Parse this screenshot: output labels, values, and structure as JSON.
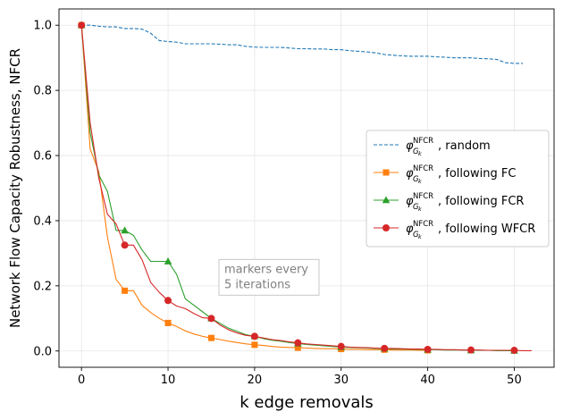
{
  "chart_data": {
    "type": "line",
    "title": "",
    "xlabel": "k edge removals",
    "ylabel": "Network Flow Capacity Robustness, NFCR",
    "xlim": [
      -2.6,
      54.6
    ],
    "ylim": [
      -0.05,
      1.05
    ],
    "xticks": [
      0,
      10,
      20,
      30,
      40,
      50
    ],
    "yticks": [
      0.0,
      0.2,
      0.4,
      0.6,
      0.8,
      1.0
    ],
    "grid": true,
    "legend_position": "center-right",
    "annotation": {
      "lines": [
        "markers every",
        "5 iterations"
      ],
      "x": 16.5,
      "y": 0.27
    },
    "series": [
      {
        "name": "random",
        "legend_prefix": "φ",
        "legend_sup": "NFCR",
        "legend_sub": "G",
        "legend_subsub": "k",
        "color": "#1f77b4",
        "dashed": true,
        "marker": "none",
        "x": [
          0,
          1,
          2,
          3,
          4,
          5,
          6,
          7,
          8,
          9,
          10,
          11,
          12,
          13,
          14,
          15,
          16,
          17,
          18,
          19,
          20,
          21,
          22,
          23,
          24,
          25,
          26,
          27,
          28,
          29,
          30,
          31,
          32,
          33,
          34,
          35,
          36,
          37,
          38,
          39,
          40,
          41,
          42,
          43,
          44,
          45,
          46,
          47,
          48,
          49,
          50,
          51
        ],
        "y": [
          1.0,
          1.0,
          0.997,
          0.995,
          0.995,
          0.99,
          0.99,
          0.988,
          0.975,
          0.953,
          0.95,
          0.948,
          0.943,
          0.943,
          0.943,
          0.943,
          0.942,
          0.94,
          0.94,
          0.935,
          0.933,
          0.932,
          0.932,
          0.932,
          0.93,
          0.928,
          0.928,
          0.927,
          0.927,
          0.925,
          0.925,
          0.922,
          0.92,
          0.918,
          0.915,
          0.91,
          0.908,
          0.906,
          0.905,
          0.905,
          0.905,
          0.903,
          0.902,
          0.9,
          0.9,
          0.9,
          0.898,
          0.897,
          0.895,
          0.885,
          0.883,
          0.883
        ]
      },
      {
        "name": "following FC",
        "legend_prefix": "φ",
        "legend_sup": "NFCR",
        "legend_sub": "G",
        "legend_subsub": "k",
        "color": "#ff7f0e",
        "dashed": false,
        "marker": "square",
        "x": [
          0,
          1,
          2,
          3,
          4,
          5,
          6,
          7,
          8,
          9,
          10,
          11,
          12,
          13,
          14,
          15,
          16,
          17,
          18,
          19,
          20,
          21,
          22,
          23,
          24,
          25,
          26,
          27,
          28,
          29,
          30,
          31,
          32,
          33,
          34,
          35,
          36,
          37,
          38,
          39,
          40
        ],
        "y": [
          1.0,
          0.62,
          0.55,
          0.35,
          0.22,
          0.185,
          0.185,
          0.14,
          0.118,
          0.1,
          0.086,
          0.075,
          0.062,
          0.052,
          0.045,
          0.04,
          0.035,
          0.03,
          0.026,
          0.022,
          0.019,
          0.017,
          0.014,
          0.012,
          0.011,
          0.01,
          0.009,
          0.008,
          0.007,
          0.007,
          0.006,
          0.005,
          0.005,
          0.004,
          0.004,
          0.004,
          0.003,
          0.003,
          0.003,
          0.002,
          0.002
        ]
      },
      {
        "name": "following FCR",
        "legend_prefix": "φ",
        "legend_sup": "NFCR",
        "legend_sub": "G",
        "legend_subsub": "k",
        "color": "#2ca02c",
        "dashed": false,
        "marker": "triangle",
        "x": [
          0,
          1,
          2,
          3,
          4,
          5,
          6,
          7,
          8,
          9,
          10,
          11,
          12,
          13,
          14,
          15,
          16,
          17,
          18,
          19,
          20,
          21,
          22,
          23,
          24,
          25,
          26,
          27,
          28,
          29,
          30,
          31,
          32,
          33,
          34,
          35,
          36,
          37,
          38,
          39,
          40,
          41,
          42,
          43,
          44,
          45,
          46,
          47,
          48,
          49,
          50
        ],
        "y": [
          1.0,
          0.67,
          0.54,
          0.49,
          0.37,
          0.37,
          0.355,
          0.31,
          0.275,
          0.275,
          0.275,
          0.235,
          0.16,
          0.14,
          0.12,
          0.1,
          0.085,
          0.07,
          0.06,
          0.05,
          0.045,
          0.038,
          0.033,
          0.03,
          0.026,
          0.023,
          0.02,
          0.018,
          0.016,
          0.014,
          0.012,
          0.011,
          0.01,
          0.009,
          0.008,
          0.007,
          0.006,
          0.006,
          0.005,
          0.005,
          0.004,
          0.004,
          0.003,
          0.003,
          0.003,
          0.002,
          0.002,
          0.002,
          0.001,
          0.001,
          0.001
        ]
      },
      {
        "name": "following WFCR",
        "legend_prefix": "φ",
        "legend_sup": "NFCR",
        "legend_sub": "G",
        "legend_subsub": "k",
        "color": "#d62728",
        "dashed": false,
        "marker": "circle",
        "x": [
          0,
          1,
          2,
          3,
          4,
          5,
          6,
          7,
          8,
          9,
          10,
          11,
          12,
          13,
          14,
          15,
          16,
          17,
          18,
          19,
          20,
          21,
          22,
          23,
          24,
          25,
          26,
          27,
          28,
          29,
          30,
          31,
          32,
          33,
          34,
          35,
          36,
          37,
          38,
          39,
          40,
          41,
          42,
          43,
          44,
          45,
          46,
          47,
          48,
          49,
          50,
          51,
          52
        ],
        "y": [
          1.0,
          0.7,
          0.53,
          0.42,
          0.39,
          0.325,
          0.325,
          0.28,
          0.21,
          0.18,
          0.155,
          0.138,
          0.13,
          0.115,
          0.102,
          0.1,
          0.08,
          0.065,
          0.055,
          0.048,
          0.045,
          0.04,
          0.035,
          0.032,
          0.028,
          0.025,
          0.022,
          0.02,
          0.018,
          0.016,
          0.014,
          0.012,
          0.011,
          0.01,
          0.009,
          0.008,
          0.008,
          0.007,
          0.006,
          0.006,
          0.005,
          0.005,
          0.004,
          0.004,
          0.003,
          0.003,
          0.003,
          0.002,
          0.002,
          0.002,
          0.002,
          0.001,
          0.001
        ]
      }
    ]
  }
}
